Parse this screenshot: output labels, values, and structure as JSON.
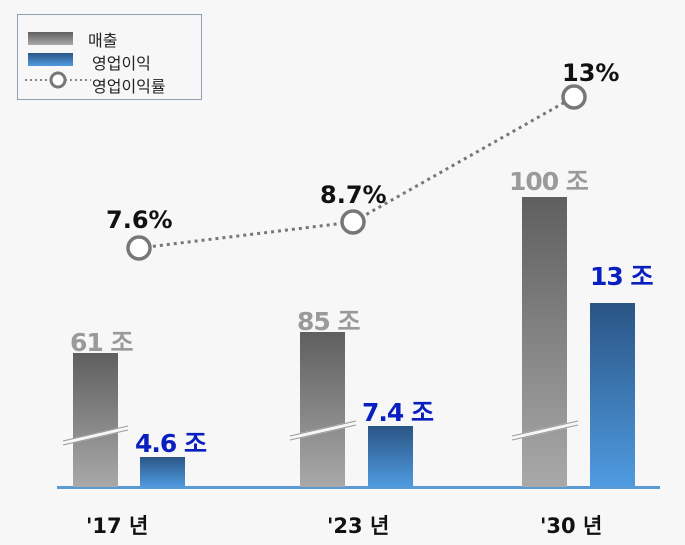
{
  "chart_data": {
    "type": "bar+line",
    "categories": [
      "'17 년",
      "'23 년",
      "'30 년"
    ],
    "series": [
      {
        "name": "매출",
        "type": "bar",
        "values": [
          61,
          85,
          100
        ],
        "labels": [
          "61 조",
          "85 조",
          "100 조"
        ],
        "color": "#808080"
      },
      {
        "name": "영업이익",
        "type": "bar",
        "values": [
          4.6,
          7.4,
          13
        ],
        "labels": [
          "4.6 조",
          "7.4 조",
          "13 조"
        ],
        "color": "#3a78b8"
      },
      {
        "name": "영업이익률",
        "type": "line",
        "values": [
          7.6,
          8.7,
          13
        ],
        "labels": [
          "7.6%",
          "8.7%",
          "13%"
        ],
        "color": "#777777"
      }
    ],
    "axis_break": true,
    "legend": "top-left"
  }
}
